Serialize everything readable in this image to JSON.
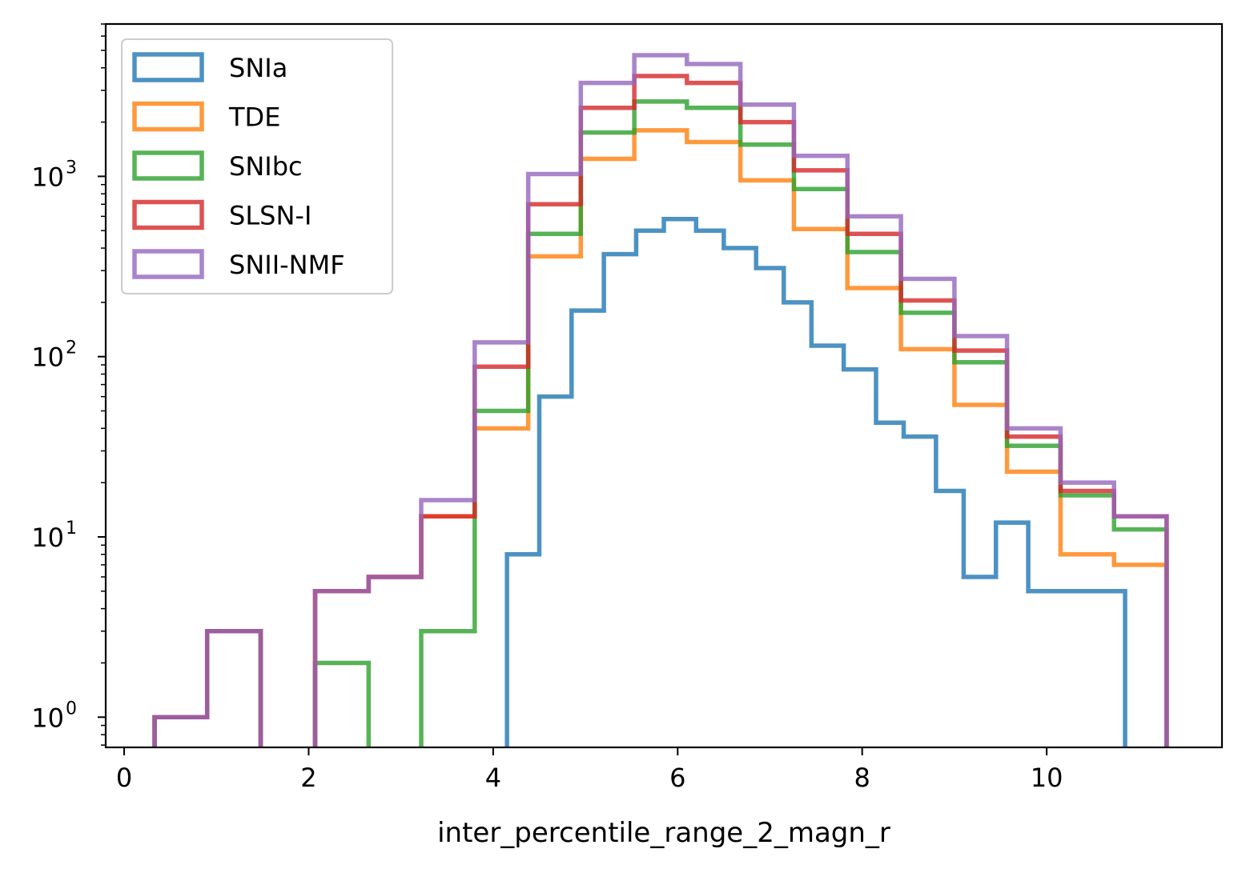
{
  "chart_data": {
    "type": "step-histogram",
    "xlabel": "inter_percentile_range_2_magn_r",
    "ylabel": "",
    "title": "",
    "yscale": "log",
    "xlim": [
      -0.2,
      11.9
    ],
    "ylim": [
      0.68,
      7000
    ],
    "x_ticks": [
      0,
      2,
      4,
      6,
      8,
      10
    ],
    "x_tick_labels": [
      "0",
      "2",
      "4",
      "6",
      "8",
      "10"
    ],
    "y_ticks": [
      1,
      10,
      100,
      1000
    ],
    "y_tick_labels": [
      {
        "base": "10",
        "exp": "0"
      },
      {
        "base": "10",
        "exp": "1"
      },
      {
        "base": "10",
        "exp": "2"
      },
      {
        "base": "10",
        "exp": "3"
      }
    ],
    "legend_position": "top-left",
    "series": [
      {
        "name": "SNIa",
        "color": "#1f77b4",
        "edges": [
          4.15,
          4.5,
          4.85,
          5.2,
          5.55,
          5.85,
          6.2,
          6.5,
          6.85,
          7.15,
          7.45,
          7.8,
          8.15,
          8.45,
          8.8,
          9.1,
          9.45,
          9.8,
          10.15,
          10.5,
          10.85
        ],
        "counts": [
          8,
          60,
          180,
          370,
          500,
          580,
          500,
          400,
          310,
          200,
          115,
          85,
          43,
          36,
          18,
          6,
          12,
          5,
          5,
          5
        ]
      },
      {
        "name": "TDE",
        "color": "#ff7f0e",
        "edges": [
          0.33,
          0.9,
          1.48,
          2.07,
          2.65,
          3.22,
          3.8,
          4.38,
          4.95,
          5.53,
          6.1,
          6.68,
          7.26,
          7.84,
          8.42,
          9.0,
          9.57,
          10.15,
          10.73,
          11.3
        ],
        "counts": [
          1,
          3,
          0,
          5,
          6,
          13,
          40,
          360,
          1250,
          1800,
          1550,
          950,
          510,
          240,
          110,
          54,
          23,
          8,
          7
        ]
      },
      {
        "name": "SNIbc",
        "color": "#2ca02c",
        "edges": [
          0.33,
          0.9,
          1.48,
          2.07,
          2.65,
          3.22,
          3.8,
          4.38,
          4.95,
          5.53,
          6.1,
          6.68,
          7.26,
          7.84,
          8.42,
          9.0,
          9.57,
          10.15,
          10.73,
          11.3
        ],
        "counts": [
          1,
          3,
          0,
          2,
          0,
          3,
          50,
          480,
          1750,
          2600,
          2400,
          1500,
          850,
          380,
          175,
          93,
          32,
          17,
          11
        ]
      },
      {
        "name": "SLSN-I",
        "color": "#d62728",
        "edges": [
          0.33,
          0.9,
          1.48,
          2.07,
          2.65,
          3.22,
          3.8,
          4.38,
          4.95,
          5.53,
          6.1,
          6.68,
          7.26,
          7.84,
          8.42,
          9.0,
          9.57,
          10.15,
          10.73,
          11.3
        ],
        "counts": [
          1,
          3,
          0,
          5,
          6,
          13,
          88,
          700,
          2400,
          3600,
          3300,
          2000,
          1080,
          480,
          205,
          108,
          36,
          18,
          13
        ]
      },
      {
        "name": "SNII-NMF",
        "color": "#9467bd",
        "edges": [
          0.33,
          0.9,
          1.48,
          2.07,
          2.65,
          3.22,
          3.8,
          4.38,
          4.95,
          5.53,
          6.1,
          6.68,
          7.26,
          7.84,
          8.42,
          9.0,
          9.57,
          10.15,
          10.73,
          11.3
        ],
        "counts": [
          1,
          3,
          0,
          5,
          6,
          16,
          120,
          1030,
          3300,
          4700,
          4200,
          2500,
          1300,
          600,
          270,
          130,
          40,
          20,
          13
        ]
      }
    ]
  }
}
